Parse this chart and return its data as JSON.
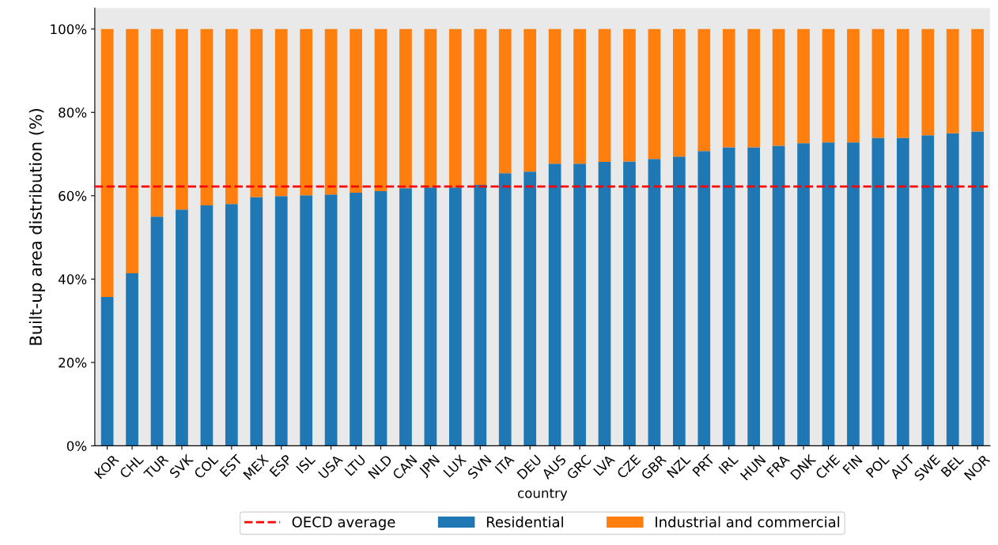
{
  "chart_data": {
    "type": "bar",
    "stacked": true,
    "xlabel": "country",
    "ylabel": "Built-up area distribution (%)",
    "categories": [
      "KOR",
      "CHL",
      "TUR",
      "SVK",
      "COL",
      "EST",
      "MEX",
      "ESP",
      "ISL",
      "USA",
      "LTU",
      "NLD",
      "CAN",
      "JPN",
      "LUX",
      "SVN",
      "ITA",
      "DEU",
      "AUS",
      "GRC",
      "LVA",
      "CZE",
      "GBR",
      "NZL",
      "PRT",
      "IRL",
      "HUN",
      "FRA",
      "DNK",
      "CHE",
      "FIN",
      "POL",
      "AUT",
      "SWE",
      "BEL",
      "NOR"
    ],
    "series": [
      {
        "name": "Residential",
        "color": "#1f77b4",
        "values": [
          35.7,
          41.4,
          55.0,
          56.7,
          57.7,
          58.0,
          59.7,
          59.9,
          60.1,
          60.3,
          60.7,
          61.1,
          61.8,
          62.0,
          62.0,
          62.6,
          65.4,
          65.8,
          67.7,
          67.7,
          68.1,
          68.2,
          68.8,
          69.4,
          70.7,
          71.6,
          71.6,
          72.0,
          72.6,
          72.8,
          72.8,
          73.9,
          73.9,
          74.5,
          75.0,
          75.4
        ]
      },
      {
        "name": "Industrial and commercial",
        "color": "#ff7f0e",
        "values": [
          64.3,
          58.6,
          45.0,
          43.3,
          42.3,
          42.0,
          40.3,
          40.1,
          39.9,
          39.7,
          39.3,
          38.9,
          38.2,
          38.0,
          38.0,
          37.4,
          34.6,
          34.2,
          32.3,
          32.3,
          31.9,
          31.8,
          31.2,
          30.6,
          29.3,
          28.4,
          28.4,
          28.0,
          27.4,
          27.2,
          27.2,
          26.1,
          26.1,
          25.5,
          25.0,
          24.6
        ]
      }
    ],
    "ylim": [
      0,
      105
    ],
    "yticks": [
      {
        "value": 0,
        "label": "0%"
      },
      {
        "value": 20,
        "label": "20%"
      },
      {
        "value": 40,
        "label": "40%"
      },
      {
        "value": 60,
        "label": "60%"
      },
      {
        "value": 80,
        "label": "80%"
      },
      {
        "value": 100,
        "label": "100%"
      }
    ],
    "ref_lines": [
      {
        "axis": "y",
        "value": 62.2,
        "label": "OECD average",
        "color": "#ff0000",
        "line_style": "dashed"
      }
    ],
    "legend": "bottom",
    "grid": false
  }
}
